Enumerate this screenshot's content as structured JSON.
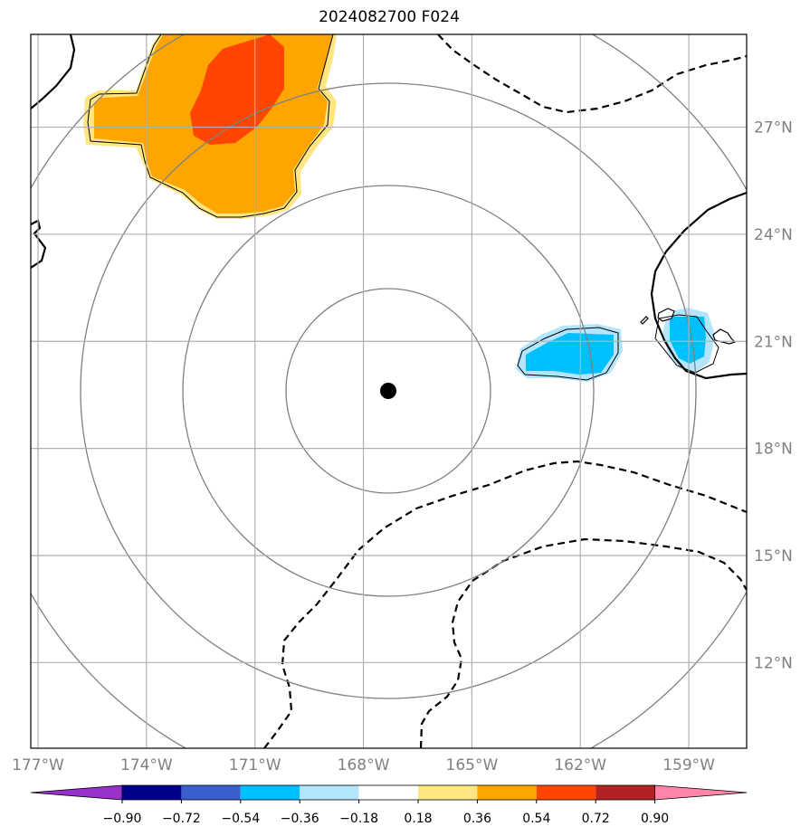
{
  "title": "2024082700 F024",
  "map": {
    "projection": "equidistant-style map of central Pacific around Hawaii",
    "extent": {
      "lon_min": -177.2,
      "lon_max": -157.4,
      "lat_min": 9.6,
      "lat_max": 29.6
    },
    "center_marker": {
      "lon": -167.8,
      "lat": 19.9,
      "color": "#000000"
    },
    "range_rings": [
      "gray",
      "gray",
      "gray",
      "gray"
    ],
    "lon_ticks": [
      {
        "value": -177,
        "label": "177°W"
      },
      {
        "value": -174,
        "label": "174°W"
      },
      {
        "value": -171,
        "label": "171°W"
      },
      {
        "value": -168,
        "label": "168°W"
      },
      {
        "value": -165,
        "label": "165°W"
      },
      {
        "value": -162,
        "label": "162°W"
      },
      {
        "value": -159,
        "label": "159°W"
      }
    ],
    "lat_ticks": [
      {
        "value": 27,
        "label": "27°N"
      },
      {
        "value": 24,
        "label": "24°N"
      },
      {
        "value": 21,
        "label": "21°N"
      },
      {
        "value": 18,
        "label": "18°N"
      },
      {
        "value": 15,
        "label": "15°N"
      },
      {
        "value": 12,
        "label": "12°N"
      }
    ],
    "grid": true,
    "colors": {
      "grid": "#b0b0b0",
      "ring": "#808080",
      "frame": "#000000"
    }
  },
  "colorbar": {
    "ticks": [
      "−0.90",
      "−0.72",
      "−0.54",
      "−0.36",
      "−0.18",
      "0.18",
      "0.36",
      "0.54",
      "0.72",
      "0.90"
    ],
    "colors": [
      "#9932cc",
      "#00008b",
      "#3a5fcd",
      "#00bfff",
      "#b3e5fc",
      "#ffffff",
      "#ffe680",
      "#ffa500",
      "#ff4500",
      "#b22222",
      "#ff85a8"
    ],
    "extend": "both"
  },
  "fields": {
    "positive_shading_colors": [
      "#ffe680",
      "#ffa500",
      "#ff4500"
    ],
    "negative_shading_colors": [
      "#b3e5fc",
      "#00bfff"
    ],
    "contour_solid": "#000000",
    "contour_dashed": "#000000"
  }
}
